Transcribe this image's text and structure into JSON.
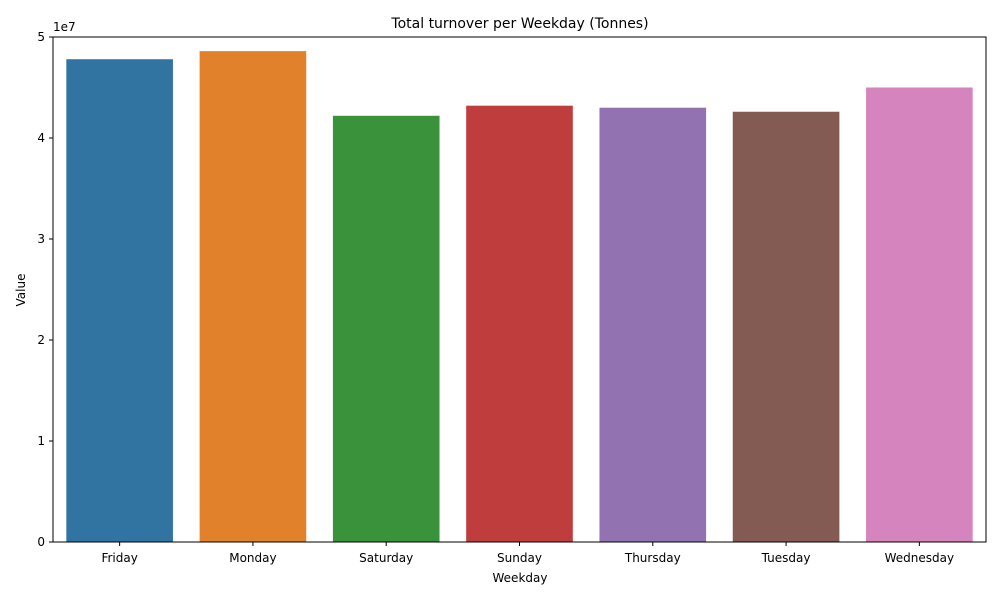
{
  "chart_data": {
    "type": "bar",
    "title": "Total turnover per Weekday (Tonnes)",
    "xlabel": "Weekday",
    "ylabel": "Value",
    "offset_text": "1e7",
    "categories": [
      "Friday",
      "Monday",
      "Saturday",
      "Sunday",
      "Thursday",
      "Tuesday",
      "Wednesday"
    ],
    "values": [
      47800000,
      48600000,
      42200000,
      43200000,
      43000000,
      42600000,
      45000000
    ],
    "colors": [
      "#3274a1",
      "#e1812c",
      "#3a923a",
      "#c03d3e",
      "#9372b2",
      "#845b53",
      "#d684bd"
    ],
    "ylim": [
      0,
      50000000
    ],
    "yticks": [
      0,
      10000000,
      20000000,
      30000000,
      40000000,
      50000000
    ],
    "ytick_labels": [
      "0",
      "1",
      "2",
      "3",
      "4",
      "5"
    ],
    "grid": false,
    "legend": "none"
  }
}
